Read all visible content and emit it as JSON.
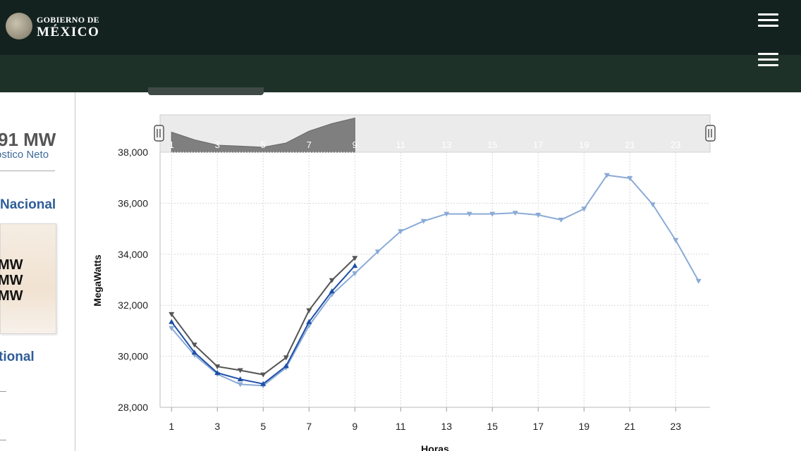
{
  "header": {
    "brand_line1": "GOBIERNO DE",
    "brand_line2": "MÉXICO",
    "menu_icon": "hamburger-menu-icon"
  },
  "sidebar": {
    "value_text": "91 MW",
    "value_sub": "óstico Neto",
    "section1": "Nacional",
    "card_lines": [
      "MW",
      "MW",
      "MW"
    ],
    "section2": "tional"
  },
  "colors": {
    "topbar": "#13221e",
    "subbar": "#1e3129",
    "accent_blue": "#2f5d98",
    "series_gray": "#555555",
    "series_blue": "#1f4fa8",
    "series_light": "#8aaad6"
  },
  "chart_data": {
    "type": "line",
    "xlabel": "Horas",
    "ylabel": "MegaWatts",
    "x_ticks": [
      1,
      3,
      5,
      7,
      9,
      11,
      13,
      15,
      17,
      19,
      21,
      23
    ],
    "y_ticks": [
      28000,
      30000,
      32000,
      34000,
      36000,
      38000
    ],
    "y_tick_labels": [
      "28,000",
      "30,000",
      "32,000",
      "34,000",
      "36,000",
      "38,000"
    ],
    "xlim": [
      0.5,
      24.5
    ],
    "ylim": [
      28000,
      38000
    ],
    "grid": true,
    "navigator": {
      "selected_range": [
        1,
        9
      ],
      "x_ticks": [
        1,
        3,
        5,
        7,
        9,
        11,
        13,
        15,
        17,
        19,
        21,
        23
      ]
    },
    "series": [
      {
        "color": "#555555",
        "marker": "triangle-down",
        "x": [
          1,
          2,
          3,
          4,
          5,
          6,
          7,
          8,
          9
        ],
        "values": [
          31650,
          30450,
          29600,
          29450,
          29280,
          29950,
          31800,
          32980,
          33850
        ]
      },
      {
        "color": "#1f4fa8",
        "marker": "triangle-up",
        "x": [
          1,
          2,
          3,
          4,
          5,
          6,
          7,
          8,
          9
        ],
        "values": [
          31350,
          30150,
          29350,
          29100,
          28920,
          29620,
          31350,
          32550,
          33550
        ]
      },
      {
        "color": "#8aaad6",
        "marker": "triangle-down",
        "x": [
          1,
          2,
          3,
          4,
          5,
          6,
          7,
          8,
          9,
          10,
          11,
          12,
          13,
          14,
          15,
          16,
          17,
          18,
          19,
          20,
          21,
          22,
          23,
          24
        ],
        "values": [
          31100,
          30050,
          29300,
          28900,
          28850,
          29550,
          31200,
          32420,
          33250,
          34100,
          34900,
          35300,
          35580,
          35580,
          35580,
          35620,
          35540,
          35350,
          35780,
          37100,
          36980,
          35950,
          34550,
          32950
        ]
      }
    ]
  }
}
